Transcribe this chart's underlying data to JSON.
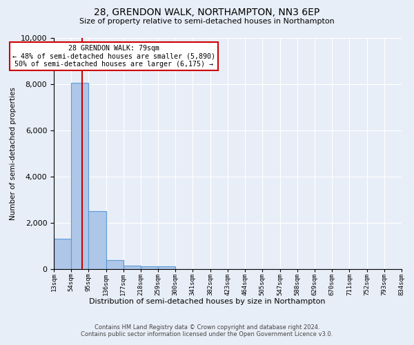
{
  "title": "28, GRENDON WALK, NORTHAMPTON, NN3 6EP",
  "subtitle": "Size of property relative to semi-detached houses in Northampton",
  "xlabel": "Distribution of semi-detached houses by size in Northampton",
  "ylabel": "Number of semi-detached properties",
  "footnote1": "Contains HM Land Registry data © Crown copyright and database right 2024.",
  "footnote2": "Contains public sector information licensed under the Open Government Licence v3.0.",
  "annotation_line1": "28 GRENDON WALK: 79sqm",
  "annotation_line2": "← 48% of semi-detached houses are smaller (5,890)",
  "annotation_line3": "50% of semi-detached houses are larger (6,175) →",
  "bar_edges": [
    13,
    54,
    95,
    136,
    177,
    218,
    259,
    300,
    341,
    382,
    423,
    464,
    505,
    547,
    588,
    629,
    670,
    711,
    752,
    793,
    834
  ],
  "bar_heights": [
    1300,
    8050,
    2500,
    375,
    150,
    125,
    110,
    0,
    0,
    0,
    0,
    0,
    0,
    0,
    0,
    0,
    0,
    0,
    0,
    0
  ],
  "property_size": 79,
  "bar_color": "#aec6e8",
  "bar_edge_color": "#5b9bd5",
  "red_line_color": "#cc0000",
  "annotation_box_color": "#ffffff",
  "annotation_box_edge": "#cc0000",
  "background_color": "#e8eef7",
  "grid_color": "#ffffff",
  "ylim": [
    0,
    10000
  ],
  "tick_labels": [
    "13sqm",
    "54sqm",
    "95sqm",
    "136sqm",
    "177sqm",
    "218sqm",
    "259sqm",
    "300sqm",
    "341sqm",
    "382sqm",
    "423sqm",
    "464sqm",
    "505sqm",
    "547sqm",
    "588sqm",
    "629sqm",
    "670sqm",
    "711sqm",
    "752sqm",
    "793sqm",
    "834sqm"
  ]
}
